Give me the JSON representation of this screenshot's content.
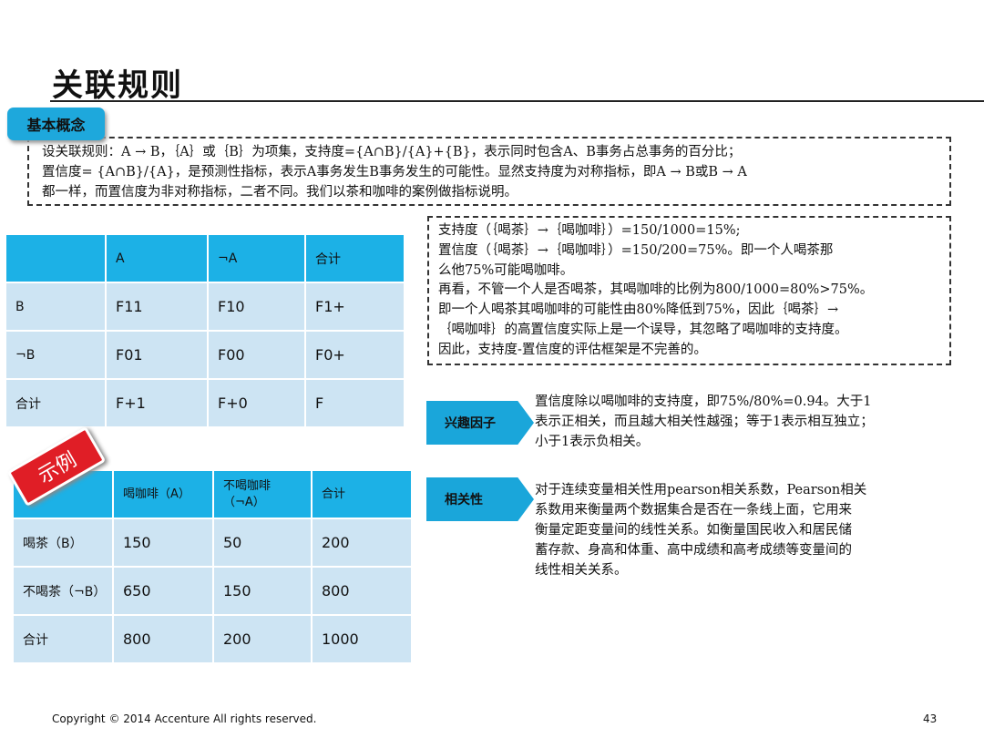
{
  "title": "关联规则",
  "badge": "基本概念",
  "concept": [
    "设关联规则：A → B，｛A｝或｛B｝为项集，支持度={A∩B}/{A}+{B}，表示同时包含A、B事务占总事务的百分比；",
    "置信度= {A∩B}/{A}，是预测性指标，表示A事务发生B事务发生的可能性。显然支持度为对称指标，即A → B或B → A",
    "都一样，而置信度为非对称指标，二者不同。我们以茶和咖啡的案例做指标说明。"
  ],
  "table1": {
    "header": [
      "",
      "A",
      "¬A",
      "合计"
    ],
    "rows": [
      [
        "B",
        "F11",
        "F10",
        "F1+"
      ],
      [
        "¬B",
        "F01",
        "F00",
        "F0+"
      ],
      [
        "合计",
        "F+1",
        "F+0",
        "F"
      ]
    ]
  },
  "tag": "示例",
  "table2": {
    "header": [
      "",
      "喝咖啡（A）",
      "不喝咖啡（¬A）",
      "合计"
    ],
    "rows": [
      [
        "喝茶（B）",
        "150",
        "50",
        "200"
      ],
      [
        "不喝茶（¬B）",
        "650",
        "150",
        "800"
      ],
      [
        "合计",
        "800",
        "200",
        "1000"
      ]
    ]
  },
  "note": [
    "支持度（｛喝茶｝→｛喝咖啡｝）=150/1000=15%;",
    "置信度（｛喝茶｝→｛喝咖啡｝）=150/200=75%。即一个人喝茶那",
    "么他75%可能喝咖啡。",
    "再看，不管一个人是否喝茶，其喝咖啡的比例为800/1000=80%>75%。",
    "即一个人喝茶其喝咖啡的可能性由80%降低到75%，因此｛喝茶｝→",
    "｛喝咖啡｝的高置信度实际上是一个误导，其忽略了喝咖啡的支持度。",
    "因此，支持度-置信度的评估框架是不完善的。"
  ],
  "interest": {
    "label": "兴趣因子",
    "text": [
      "置信度除以喝咖啡的支持度，即75%/80%=0.94。大于1",
      "表示正相关，而且越大相关性越强；等于1表示相互独立；",
      "小于1表示负相关。"
    ]
  },
  "correlation": {
    "label": "相关性",
    "text": [
      "对于连续变量相关性用pearson相关系数，Pearson相关",
      "系数用来衡量两个数据集合是否在一条线上面，它用来",
      "衡量定距变量间的线性关系。如衡量国民收入和居民储",
      "蓄存款、身高和体重、高中成绩和高考成绩等变量间的",
      "线性相关关系。"
    ]
  },
  "footer": "Copyright © 2014  Accenture  All rights reserved.",
  "page": "43"
}
